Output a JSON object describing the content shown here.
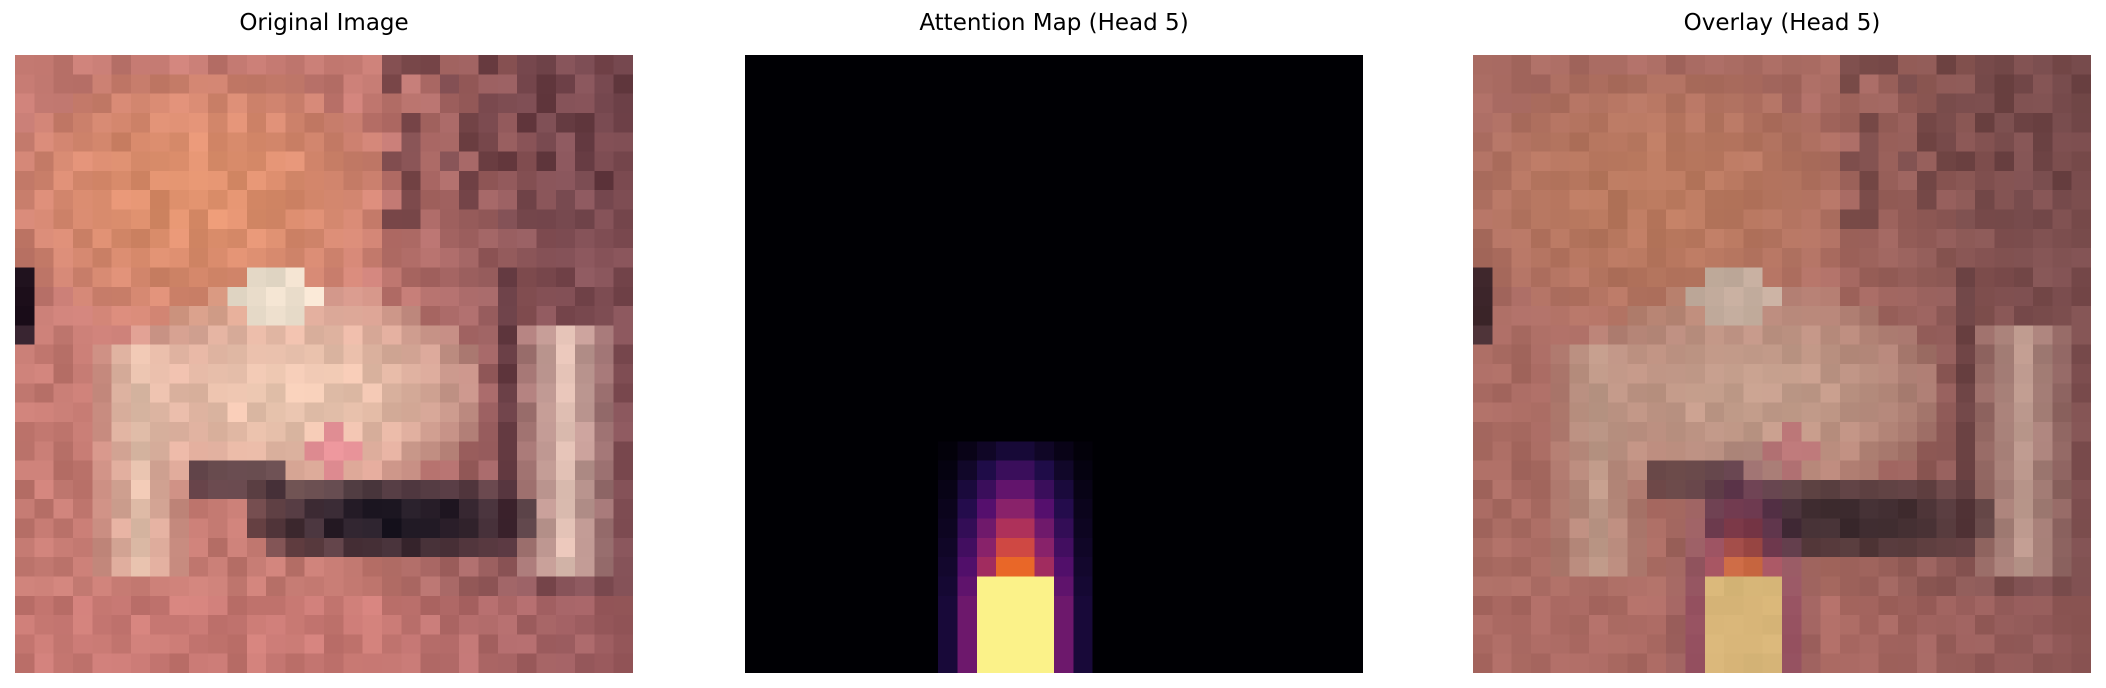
{
  "panels": [
    {
      "title": "Original Image"
    },
    {
      "title": "Attention Map (Head 5)"
    },
    {
      "title": "Overlay (Head 5)"
    }
  ],
  "images": {
    "original": {
      "description_icon": "frog-photo"
    },
    "attention_map": {
      "colormap": "inferno",
      "grid": "32x32",
      "head": 5
    },
    "overlay": {
      "alpha": 0.5
    }
  },
  "colors": {
    "background": "#ffffff",
    "attention_background": "#000004"
  }
}
